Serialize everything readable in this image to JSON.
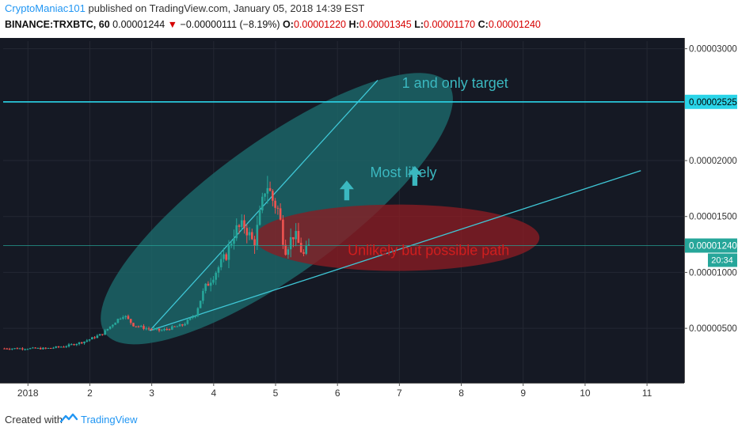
{
  "header": {
    "author": "CryptoManiac101",
    "published_text": " published on TradingView.com, January 05, 2018 14:39 EST",
    "symbol": "BINANCE:TRXBTC, 60",
    "last": "0.00001244",
    "change": "−0.00000111 (−8.19%)",
    "open_label": "O:",
    "open": "0.00001220",
    "high_label": "H:",
    "high": "0.00001345",
    "low_label": "L:",
    "low": "0.00001170",
    "close_label": "C:",
    "close": "0.00001240"
  },
  "colors": {
    "background": "#151924",
    "grid": "#242833",
    "bull": "#26a69a",
    "bear": "#ef5350",
    "trend": "#3fc7d6",
    "target": "#2ad4e8",
    "ellipse_teal": "#1c6b6d",
    "ellipse_red": "#8a1c22",
    "text_teal": "#3bb8c0",
    "text_red": "#d01e1e"
  },
  "chart_data": {
    "type": "candlestick",
    "x_axis_unit": "days since 2018-01-01",
    "xlim": [
      0.6,
      11.6
    ],
    "ylim": [
      1.3e-07,
      3.068e-05
    ],
    "x_tick_labels": [
      {
        "x": 1,
        "label": "2018"
      },
      {
        "x": 2,
        "label": "2"
      },
      {
        "x": 3,
        "label": "3"
      },
      {
        "x": 4,
        "label": "4"
      },
      {
        "x": 5,
        "label": "5"
      },
      {
        "x": 6,
        "label": "6"
      },
      {
        "x": 7,
        "label": "7"
      },
      {
        "x": 8,
        "label": "8"
      },
      {
        "x": 9,
        "label": "9"
      },
      {
        "x": 10,
        "label": "10"
      },
      {
        "x": 11,
        "label": "11"
      }
    ],
    "y_tick_labels": [
      {
        "y": 5e-06,
        "label": "0.00000500"
      },
      {
        "y": 1e-05,
        "label": "0.00001000"
      },
      {
        "y": 1.5e-05,
        "label": "0.00001500"
      },
      {
        "y": 2e-05,
        "label": "0.00002000"
      },
      {
        "y": 3e-05,
        "label": "0.00003000"
      }
    ],
    "price_levels": [
      {
        "name": "target",
        "y": 2.525e-05,
        "label": "0.00002525"
      },
      {
        "name": "last",
        "y": 1.24e-05,
        "label": "0.00001240",
        "countdown": "20:34"
      }
    ],
    "candle_anchors": [
      [
        1.0,
        3.2e-06
      ],
      [
        1.3,
        3.2e-06
      ],
      [
        1.6,
        3.4e-06
      ],
      [
        1.9,
        3.8e-06
      ],
      [
        2.2,
        4.5e-06
      ],
      [
        2.45,
        5.8e-06
      ],
      [
        2.55,
        6.2e-06
      ],
      [
        2.7,
        5.3e-06
      ],
      [
        2.9,
        5e-06
      ],
      [
        3.15,
        4.8e-06
      ],
      [
        3.5,
        5.3e-06
      ],
      [
        3.7,
        6.2e-06
      ],
      [
        3.85,
        8.5e-06
      ],
      [
        4.0,
        9.8e-06
      ],
      [
        4.2,
        1.15e-05
      ],
      [
        4.35,
        1.38e-05
      ],
      [
        4.5,
        1.42e-05
      ],
      [
        4.65,
        1.25e-05
      ],
      [
        4.78,
        1.6e-05
      ],
      [
        4.85,
        1.81e-05
      ],
      [
        4.95,
        1.65e-05
      ],
      [
        5.05,
        1.55e-05
      ],
      [
        5.15,
        1.2e-05
      ],
      [
        5.3,
        1.35e-05
      ],
      [
        5.45,
        1.15e-05
      ],
      [
        5.55,
        1.24e-05
      ]
    ],
    "trendlines": [
      {
        "from": [
          2.97,
          4.8e-06
        ],
        "to": [
          6.65,
          2.718e-05
        ]
      },
      {
        "from": [
          2.97,
          4.8e-06
        ],
        "to": [
          10.9,
          1.91e-05
        ]
      }
    ],
    "zones": [
      {
        "name": "most-likely",
        "center": [
          5.02,
          1.57e-05
        ],
        "label": "Most likely"
      },
      {
        "name": "unlikely",
        "center": [
          6.96,
          1.31e-05
        ],
        "label": "Unlikely but possible path"
      }
    ],
    "annotations": [
      {
        "text": "1 and only target",
        "x": 7.9,
        "y": 2.65e-05
      }
    ],
    "arrows": [
      {
        "x": 6.15,
        "y": 1.73e-05
      },
      {
        "x": 7.25,
        "y": 1.86e-05
      }
    ]
  },
  "footer": {
    "created_with": "Created with",
    "brand": "TradingView"
  }
}
